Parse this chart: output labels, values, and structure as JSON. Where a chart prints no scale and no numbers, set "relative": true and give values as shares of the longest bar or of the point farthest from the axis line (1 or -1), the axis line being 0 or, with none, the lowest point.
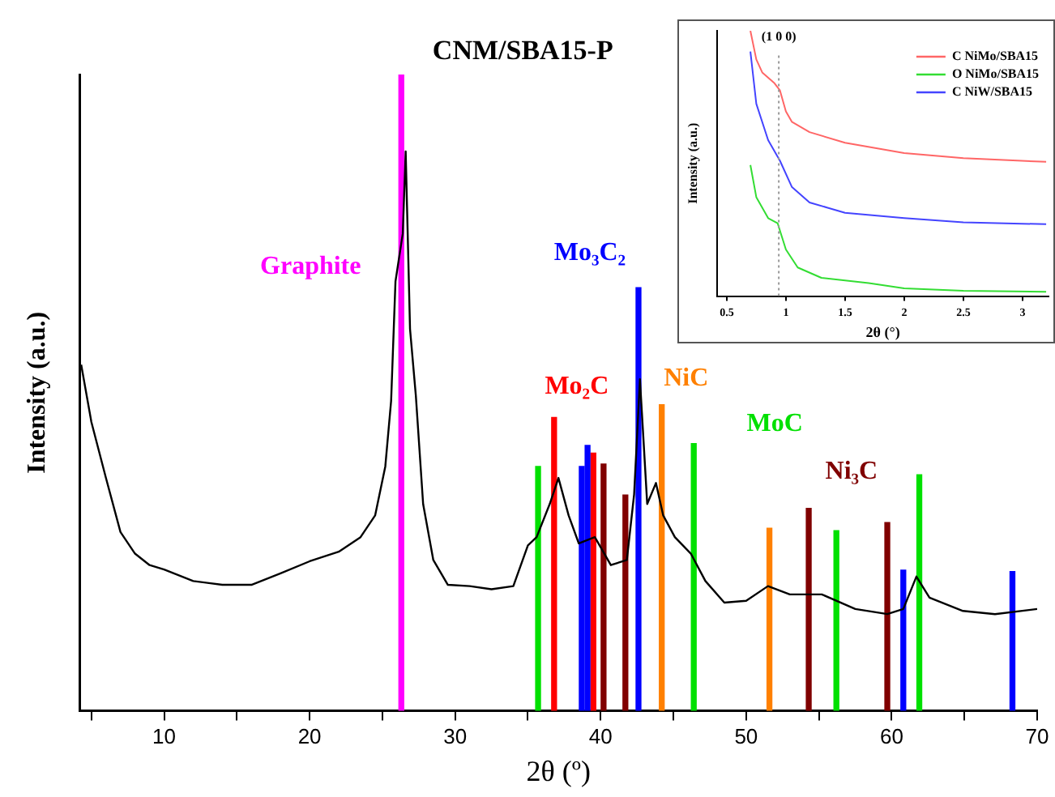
{
  "chart_data": [
    {
      "type": "line",
      "title": "CNM/SBA15-P",
      "xlabel": "2θ (º)",
      "ylabel": "Intensity (a.u.)",
      "relative": true,
      "grid": false,
      "legend": false,
      "xlim": [
        4.2,
        70
      ],
      "xticks": [
        {
          "value": 5,
          "label": null
        },
        10,
        {
          "value": 15,
          "label": null
        },
        20,
        {
          "value": 25,
          "label": null
        },
        30,
        {
          "value": 35,
          "label": null
        },
        40,
        {
          "value": 45,
          "label": null
        },
        50,
        {
          "value": 55,
          "label": null
        },
        60,
        {
          "value": 65,
          "label": null
        },
        70
      ],
      "series": [
        {
          "color": "#000000",
          "x": [
            4.3,
            5,
            6,
            7,
            8,
            9,
            10,
            12,
            14,
            16,
            18,
            20,
            22,
            23.5,
            24.5,
            25.2,
            25.6,
            25.9,
            26.2,
            26.4,
            26.6,
            26.9,
            27.3,
            27.8,
            28.5,
            29.5,
            31,
            32.5,
            34,
            35,
            35.6,
            36.5,
            37.1,
            37.8,
            38.5,
            39.6,
            40.7,
            41.8,
            42.3,
            42.7,
            42.9,
            43.2,
            43.8,
            44.3,
            45.1,
            46.2,
            47.2,
            48.5,
            50,
            51.5,
            53,
            55.2,
            57.5,
            59.7,
            60.8,
            61.7,
            62.6,
            64.9,
            67.1,
            70
          ],
          "values": [
            0.544,
            0.454,
            0.366,
            0.281,
            0.247,
            0.229,
            0.222,
            0.204,
            0.198,
            0.198,
            0.216,
            0.235,
            0.25,
            0.273,
            0.307,
            0.384,
            0.487,
            0.675,
            0.72,
            0.75,
            0.879,
            0.6,
            0.495,
            0.325,
            0.237,
            0.198,
            0.196,
            0.191,
            0.196,
            0.26,
            0.273,
            0.325,
            0.366,
            0.307,
            0.263,
            0.273,
            0.229,
            0.237,
            0.34,
            0.521,
            0.443,
            0.325,
            0.358,
            0.307,
            0.273,
            0.247,
            0.204,
            0.17,
            0.173,
            0.196,
            0.183,
            0.183,
            0.16,
            0.152,
            0.16,
            0.211,
            0.178,
            0.157,
            0.152,
            0.16
          ]
        },
        {
          "type": "bar",
          "name": "Graphite",
          "color": "#ff00ff",
          "x": [
            26.3
          ],
          "values": [
            1
          ]
        },
        {
          "type": "bar",
          "name": "Mo₃C₂",
          "color": "#0000ff",
          "x": [
            38.7,
            39.1,
            42.6,
            60.8,
            68.3
          ],
          "values": [
            0.384,
            0.417,
            0.665,
            0.221,
            0.219
          ]
        },
        {
          "type": "bar",
          "name": "Mo₂C",
          "color": "#ff0000",
          "x": [
            36.8,
            39.5
          ],
          "values": [
            0.461,
            0.405
          ]
        },
        {
          "type": "bar",
          "name": "NiC",
          "color": "#ff8000",
          "x": [
            44.2,
            51.6
          ],
          "values": [
            0.481,
            0.287
          ]
        },
        {
          "type": "bar",
          "name": "MoC",
          "color": "#00e000",
          "x": [
            35.7,
            46.4,
            56.2,
            61.9
          ],
          "values": [
            0.384,
            0.42,
            0.283,
            0.371
          ]
        },
        {
          "type": "bar",
          "name": "Ni₃C",
          "color": "#800000",
          "x": [
            40.2,
            41.7,
            54.3,
            59.7
          ],
          "values": [
            0.388,
            0.339,
            0.318,
            0.296
          ]
        }
      ]
    },
    {
      "type": "line",
      "xlabel": "2θ (°)",
      "ylabel": "Intensity (a.u.)",
      "relative": true,
      "grid": false,
      "legend": "top right",
      "xlim": [
        0.42,
        3.22
      ],
      "xticks": [
        0.5,
        1.0,
        1.5,
        2.0,
        2.5,
        3.0
      ],
      "ref_lines": [
        {
          "axis": "x",
          "value": 0.94,
          "label": "(1 0 0)",
          "color": "#999999",
          "line_style": "dotted"
        }
      ],
      "series": [
        {
          "name": "C NiMo/SBA15",
          "color": "#ff6666",
          "x": [
            0.7,
            0.75,
            0.8,
            0.9,
            0.95,
            1.0,
            1.05,
            1.2,
            1.5,
            2.0,
            2.5,
            3.2
          ],
          "values": [
            1.0,
            0.892,
            0.843,
            0.804,
            0.775,
            0.696,
            0.657,
            0.618,
            0.578,
            0.539,
            0.52,
            0.506
          ]
        },
        {
          "name": "O NiMo/SBA15",
          "color": "#33dd33",
          "x": [
            0.7,
            0.75,
            0.85,
            0.93,
            1.0,
            1.1,
            1.3,
            1.7,
            2.0,
            2.5,
            3.2
          ],
          "values": [
            0.494,
            0.373,
            0.294,
            0.275,
            0.176,
            0.108,
            0.069,
            0.049,
            0.029,
            0.02,
            0.016
          ]
        },
        {
          "name": "C NiW/SBA15",
          "color": "#4444ff",
          "x": [
            0.7,
            0.75,
            0.85,
            0.95,
            1.05,
            1.2,
            1.5,
            2.0,
            2.5,
            3.2
          ],
          "values": [
            0.922,
            0.725,
            0.588,
            0.51,
            0.412,
            0.353,
            0.314,
            0.294,
            0.278,
            0.271
          ]
        }
      ]
    }
  ]
}
